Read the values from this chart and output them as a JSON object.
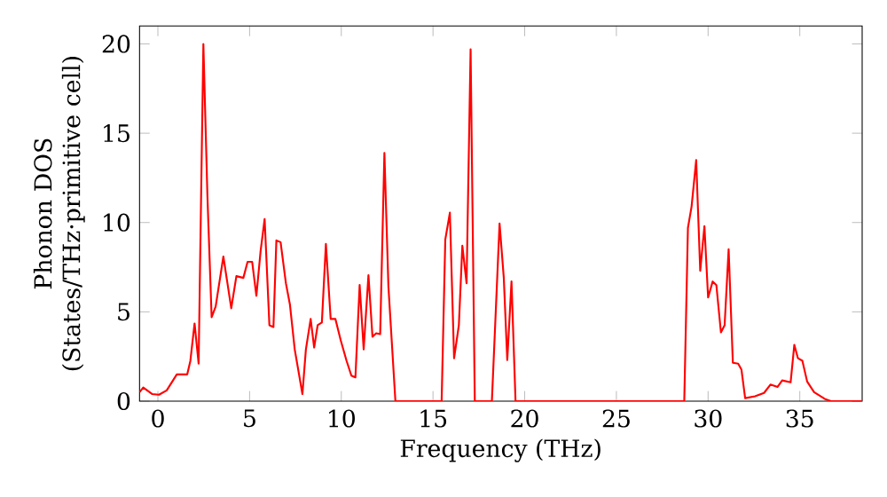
{
  "chart_data": {
    "type": "line",
    "xlabel": "Frequency (THz)",
    "ylabel": "Phonon DOS (States/THz·primitive cell)",
    "xlim": [
      -1,
      38.4
    ],
    "ylim": [
      0,
      21
    ],
    "xticks": [
      0,
      5,
      10,
      15,
      20,
      25,
      30,
      35
    ],
    "yticks": [
      0,
      5,
      10,
      15,
      20
    ],
    "grid": false,
    "series": [
      {
        "color": "#ff0000",
        "x": [
          -1,
          -0.8,
          -0.32,
          0.06,
          0.48,
          1.03,
          1.6,
          1.77,
          2.0,
          2.22,
          2.48,
          2.7,
          2.93,
          3.15,
          3.57,
          4.0,
          4.28,
          4.66,
          4.89,
          5.14,
          5.37,
          5.6,
          5.82,
          6.08,
          6.3,
          6.46,
          6.69,
          6.98,
          7.2,
          7.46,
          7.88,
          8.07,
          8.33,
          8.52,
          8.71,
          8.94,
          9.16,
          9.42,
          9.68,
          9.97,
          10.29,
          10.55,
          10.77,
          11.0,
          11.22,
          11.48,
          11.7,
          11.9,
          12.12,
          12.35,
          12.57,
          12.95,
          15.47,
          15.67,
          15.92,
          16.15,
          16.41,
          16.6,
          16.83,
          17.05,
          17.28,
          18.21,
          18.63,
          18.86,
          19.05,
          19.28,
          19.5,
          28.7,
          28.9,
          29.1,
          29.35,
          29.57,
          29.8,
          30.0,
          30.25,
          30.45,
          30.7,
          30.9,
          31.12,
          31.35,
          31.64,
          31.82,
          32.02,
          32.56,
          33.05,
          33.4,
          33.79,
          34.04,
          34.5,
          34.7,
          34.9,
          35.14,
          35.4,
          35.78,
          36.36,
          36.7,
          38.4
        ],
        "values": [
          0.5,
          0.76,
          0.4,
          0.36,
          0.6,
          1.5,
          1.5,
          2.25,
          4.35,
          2.1,
          20.0,
          11.5,
          4.7,
          5.3,
          8.1,
          5.2,
          7.0,
          6.9,
          7.8,
          7.8,
          5.9,
          8.4,
          10.2,
          4.25,
          4.15,
          9.0,
          8.9,
          6.6,
          5.4,
          2.9,
          0.4,
          2.9,
          4.6,
          3.0,
          4.25,
          4.4,
          8.8,
          4.6,
          4.6,
          3.4,
          2.25,
          1.43,
          1.33,
          6.5,
          2.9,
          7.05,
          3.6,
          3.8,
          3.75,
          13.9,
          6.4,
          0,
          0,
          9.05,
          10.55,
          2.4,
          4.25,
          8.7,
          6.6,
          19.7,
          0,
          0,
          9.95,
          6.9,
          2.3,
          6.7,
          0,
          0,
          9.7,
          10.9,
          13.5,
          7.3,
          9.8,
          5.8,
          6.7,
          6.5,
          3.85,
          4.25,
          8.5,
          2.15,
          2.1,
          1.76,
          0.17,
          0.27,
          0.46,
          0.93,
          0.8,
          1.16,
          1.06,
          3.15,
          2.4,
          2.26,
          1.1,
          0.5,
          0.13,
          0,
          0
        ]
      }
    ]
  }
}
